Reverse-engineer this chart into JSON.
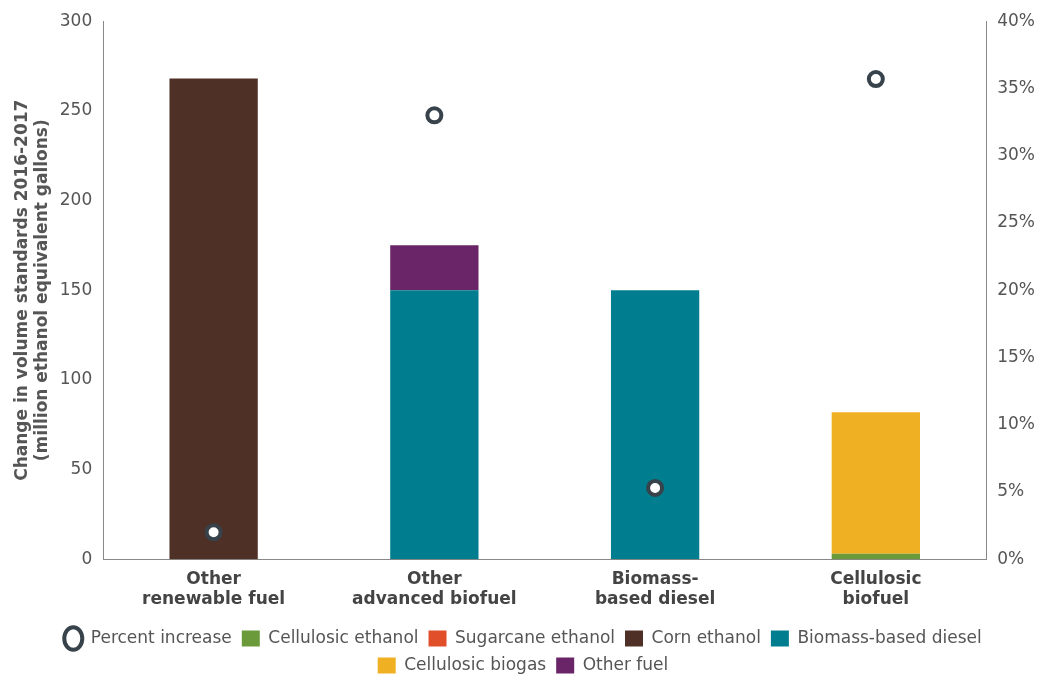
{
  "chart_data": {
    "type": "bar",
    "stacked": true,
    "categories": [
      "Other\nrenewable fuel",
      "Other\nadvanced biofuel",
      "Biomass-\nbased diesel",
      "Cellulosic\nbiofuel"
    ],
    "ylabel": "Change in volume standards 2016-2017\n(million ethanol equivalent gallons)",
    "ylim": [
      0,
      300
    ],
    "yticks": [
      0,
      50,
      100,
      150,
      200,
      250,
      300
    ],
    "y2lim": [
      0,
      40
    ],
    "y2ticks": [
      {
        "value": 0,
        "label": "0%"
      },
      {
        "value": 5,
        "label": "5%"
      },
      {
        "value": 10,
        "label": "10%"
      },
      {
        "value": 15,
        "label": "15%"
      },
      {
        "value": 20,
        "label": "20%"
      },
      {
        "value": 25,
        "label": "25%"
      },
      {
        "value": 30,
        "label": "30%"
      },
      {
        "value": 35,
        "label": "35%"
      },
      {
        "value": 40,
        "label": "40%"
      }
    ],
    "grid": false,
    "legend": "bottom",
    "series": [
      {
        "name": "Cellulosic ethanol",
        "color": "#6a9a3a",
        "values": [
          0,
          0,
          0,
          3
        ]
      },
      {
        "name": "Sugarcane ethanol",
        "color": "#e04e2a",
        "values": [
          0,
          0,
          0,
          0
        ]
      },
      {
        "name": "Corn ethanol",
        "color": "#4e3026",
        "values": [
          268,
          0,
          0,
          0
        ]
      },
      {
        "name": "Biomass-based diesel",
        "color": "#007e8f",
        "values": [
          0,
          150,
          150,
          0
        ]
      },
      {
        "name": "Cellulosic biogas",
        "color": "#f0b023",
        "values": [
          0,
          0,
          0,
          79
        ]
      },
      {
        "name": "Other fuel",
        "color": "#6a2468",
        "values": [
          0,
          25,
          0,
          0
        ]
      },
      {
        "name": "Percent increase",
        "type": "scatter",
        "axis": "y2",
        "color": "#37424a",
        "marker": "circle",
        "values": [
          2,
          33,
          5.3,
          35.7
        ]
      }
    ]
  }
}
